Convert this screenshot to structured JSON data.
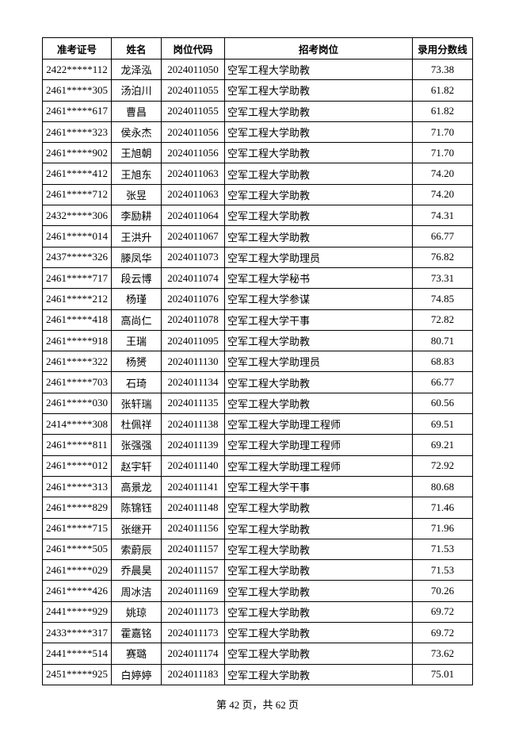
{
  "table": {
    "headers": [
      "准考证号",
      "姓名",
      "岗位代码",
      "招考岗位",
      "录用分数线"
    ],
    "rows": [
      [
        "2422*****112",
        "龙泽泓",
        "2024011050",
        "空军工程大学助教",
        "73.38"
      ],
      [
        "2461*****305",
        "汤泊川",
        "2024011055",
        "空军工程大学助教",
        "61.82"
      ],
      [
        "2461*****617",
        "曹昌",
        "2024011055",
        "空军工程大学助教",
        "61.82"
      ],
      [
        "2461*****323",
        "侯永杰",
        "2024011056",
        "空军工程大学助教",
        "71.70"
      ],
      [
        "2461*****902",
        "王旭朝",
        "2024011056",
        "空军工程大学助教",
        "71.70"
      ],
      [
        "2461*****412",
        "王旭东",
        "2024011063",
        "空军工程大学助教",
        "74.20"
      ],
      [
        "2461*****712",
        "张昱",
        "2024011063",
        "空军工程大学助教",
        "74.20"
      ],
      [
        "2432*****306",
        "李励耕",
        "2024011064",
        "空军工程大学助教",
        "74.31"
      ],
      [
        "2461*****014",
        "王洪升",
        "2024011067",
        "空军工程大学助教",
        "66.77"
      ],
      [
        "2437*****326",
        "滕凤华",
        "2024011073",
        "空军工程大学助理员",
        "76.82"
      ],
      [
        "2461*****717",
        "段云博",
        "2024011074",
        "空军工程大学秘书",
        "73.31"
      ],
      [
        "2461*****212",
        "杨瑾",
        "2024011076",
        "空军工程大学参谋",
        "74.85"
      ],
      [
        "2461*****418",
        "高尚仁",
        "2024011078",
        "空军工程大学干事",
        "72.82"
      ],
      [
        "2461*****918",
        "王瑞",
        "2024011095",
        "空军工程大学助教",
        "80.71"
      ],
      [
        "2461*****322",
        "杨赟",
        "2024011130",
        "空军工程大学助理员",
        "68.83"
      ],
      [
        "2461*****703",
        "石琦",
        "2024011134",
        "空军工程大学助教",
        "66.77"
      ],
      [
        "2461*****030",
        "张轩瑞",
        "2024011135",
        "空军工程大学助教",
        "60.56"
      ],
      [
        "2414*****308",
        "杜佩祥",
        "2024011138",
        "空军工程大学助理工程师",
        "69.51"
      ],
      [
        "2461*****811",
        "张强强",
        "2024011139",
        "空军工程大学助理工程师",
        "69.21"
      ],
      [
        "2461*****012",
        "赵宇轩",
        "2024011140",
        "空军工程大学助理工程师",
        "72.92"
      ],
      [
        "2461*****313",
        "高景龙",
        "2024011141",
        "空军工程大学干事",
        "80.68"
      ],
      [
        "2461*****829",
        "陈锦钰",
        "2024011148",
        "空军工程大学助教",
        "71.46"
      ],
      [
        "2461*****715",
        "张继开",
        "2024011156",
        "空军工程大学助教",
        "71.96"
      ],
      [
        "2461*****505",
        "索蔚辰",
        "2024011157",
        "空军工程大学助教",
        "71.53"
      ],
      [
        "2461*****029",
        "乔晨昊",
        "2024011157",
        "空军工程大学助教",
        "71.53"
      ],
      [
        "2461*****426",
        "周冰洁",
        "2024011169",
        "空军工程大学助教",
        "70.26"
      ],
      [
        "2441*****929",
        "姚琼",
        "2024011173",
        "空军工程大学助教",
        "69.72"
      ],
      [
        "2433*****317",
        "霍嘉铭",
        "2024011173",
        "空军工程大学助教",
        "69.72"
      ],
      [
        "2441*****514",
        "赛璐",
        "2024011174",
        "空军工程大学助教",
        "73.62"
      ],
      [
        "2451*****925",
        "白婷婷",
        "2024011183",
        "空军工程大学助教",
        "75.01"
      ]
    ]
  },
  "footer": {
    "page_text": "第 42 页，共 62 页"
  }
}
